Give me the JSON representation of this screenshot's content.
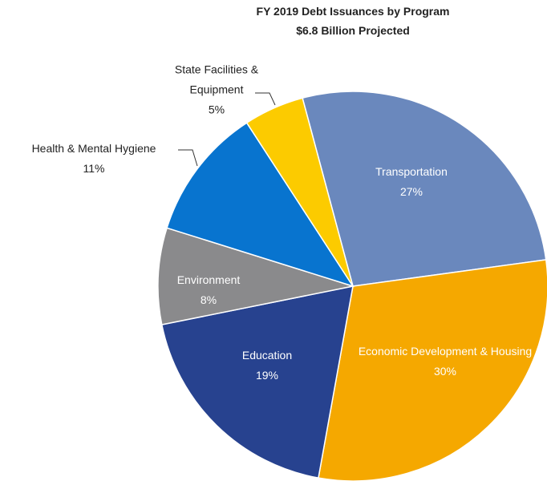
{
  "chart_data": {
    "type": "pie",
    "title": "FY 2019 Debt Issuances  by Program",
    "subtitle": "$6.8 Billion Projected",
    "categories": [
      "Transportation",
      "Economic Development & Housing",
      "Education",
      "Environment",
      "Health & Mental Hygiene",
      "State Facilities & Equipment"
    ],
    "values": [
      27,
      30,
      19,
      8,
      11,
      5
    ],
    "value_labels": [
      "27%",
      "30%",
      "19%",
      "8%",
      "11%",
      "5%"
    ],
    "colors": [
      "#6a88bd",
      "#f5a800",
      "#27428f",
      "#8a8a8c",
      "#0874cf",
      "#fccb00"
    ]
  }
}
